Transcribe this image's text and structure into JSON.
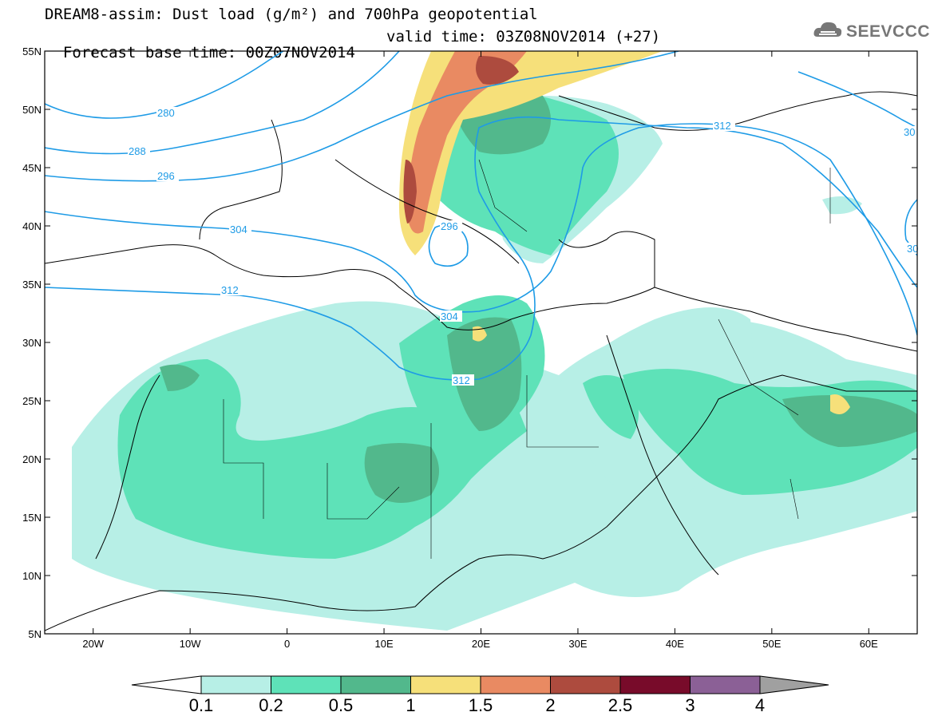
{
  "title": {
    "line1": "DREAM8-assim: Dust load (g/m²) and 700hPa geopotential",
    "line2_left": "Forecast base time: 00Z07NOV2014",
    "line2_right": "valid time: 03Z08NOV2014 (+27)"
  },
  "logo": {
    "text": "SEEVCCC",
    "icon": "cloud-logo-icon"
  },
  "axes": {
    "x_labels": [
      "20W",
      "10W",
      "0",
      "10E",
      "20E",
      "30E",
      "40E",
      "50E",
      "60E"
    ],
    "y_labels": [
      "55N",
      "50N",
      "45N",
      "40N",
      "35N",
      "30N",
      "25N",
      "20N",
      "15N",
      "10N",
      "5N"
    ],
    "x_range_deg": [
      -25,
      65
    ],
    "y_range_deg": [
      5,
      55
    ]
  },
  "contours": {
    "color": "#1e9be6",
    "labels": [
      "280",
      "288",
      "296",
      "304",
      "312",
      "296",
      "304",
      "312",
      "312",
      "30",
      "30"
    ]
  },
  "colorbar": {
    "labels": [
      "0.1",
      "0.2",
      "0.5",
      "1",
      "1.5",
      "2",
      "2.5",
      "3",
      "4"
    ],
    "colors": [
      "#ffffff",
      "#b7efe6",
      "#5ee2b8",
      "#52b88c",
      "#f6e07a",
      "#e98a62",
      "#ad4b3e",
      "#780b2a",
      "#8b6096",
      "#a0a0a0"
    ]
  },
  "colors": {
    "low": "#b7efe6",
    "mid": "#5ee2b8",
    "mid2": "#52b88c",
    "yellow": "#f6e07a",
    "orange": "#e98a62",
    "brown": "#ad4b3e",
    "maroon": "#780b2a"
  }
}
